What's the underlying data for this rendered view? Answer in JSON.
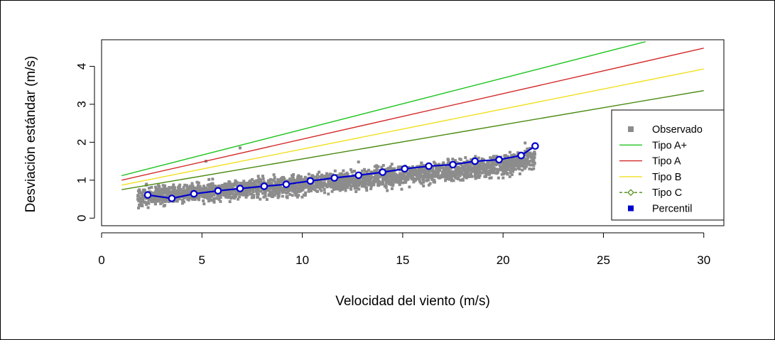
{
  "chart_data": {
    "type": "scatter",
    "xlabel": "Velocidad del viento (m/s)",
    "ylabel": "Desviación estándar (m/s)",
    "xlim": [
      0,
      31
    ],
    "ylim": [
      -0.2,
      4.7
    ],
    "x_ticks": [
      "0",
      "5",
      "10",
      "15",
      "20",
      "25",
      "30"
    ],
    "y_ticks": [
      "0",
      "1",
      "2",
      "3",
      "4"
    ],
    "x_tick_values": [
      0,
      5,
      10,
      15,
      20,
      25,
      30
    ],
    "y_tick_values": [
      0,
      1,
      2,
      3,
      4
    ],
    "grid": false,
    "legend_position": "bottom-right",
    "colors": {
      "observed": "#8c8c8c",
      "tipo_a_plus": "#22c522",
      "tipo_a": "#d42a2a",
      "tipo_b": "#f0e020",
      "tipo_c": "#4a8a10",
      "percentil": "#0000cc"
    },
    "series": [
      {
        "name": "Observado",
        "kind": "points-band",
        "x_range": [
          1.8,
          21.6
        ],
        "lower_band": [
          [
            1.8,
            0.2
          ],
          [
            5,
            0.33
          ],
          [
            10,
            0.5
          ],
          [
            15,
            0.72
          ],
          [
            20,
            1.0
          ],
          [
            21.6,
            1.2
          ]
        ],
        "upper_band": [
          [
            1.8,
            0.9
          ],
          [
            5,
            1.05
          ],
          [
            10,
            1.25
          ],
          [
            15,
            1.5
          ],
          [
            20,
            1.78
          ],
          [
            21.6,
            1.95
          ]
        ]
      },
      {
        "name": "Tipo A+",
        "x": [
          1,
          27.1
        ],
        "y": [
          1.12,
          4.65
        ]
      },
      {
        "name": "Tipo A",
        "x": [
          1,
          30
        ],
        "y": [
          1.0,
          4.48
        ]
      },
      {
        "name": "Tipo B",
        "x": [
          1,
          30
        ],
        "y": [
          0.87,
          3.93
        ]
      },
      {
        "name": "Tipo C",
        "x": [
          1,
          30
        ],
        "y": [
          0.75,
          3.36
        ]
      },
      {
        "name": "Percentil",
        "x": [
          2.3,
          3.5,
          4.6,
          5.8,
          6.9,
          8.1,
          9.2,
          10.4,
          11.6,
          12.8,
          14.0,
          15.1,
          16.3,
          17.5,
          18.6,
          19.8,
          20.9,
          21.6
        ],
        "y": [
          0.61,
          0.52,
          0.64,
          0.72,
          0.78,
          0.84,
          0.89,
          0.98,
          1.06,
          1.13,
          1.21,
          1.3,
          1.37,
          1.41,
          1.5,
          1.54,
          1.65,
          1.9
        ]
      }
    ],
    "legend": [
      "Observado",
      "Tipo A+",
      "Tipo A",
      "Tipo B",
      "Tipo C",
      "Percentil"
    ]
  }
}
